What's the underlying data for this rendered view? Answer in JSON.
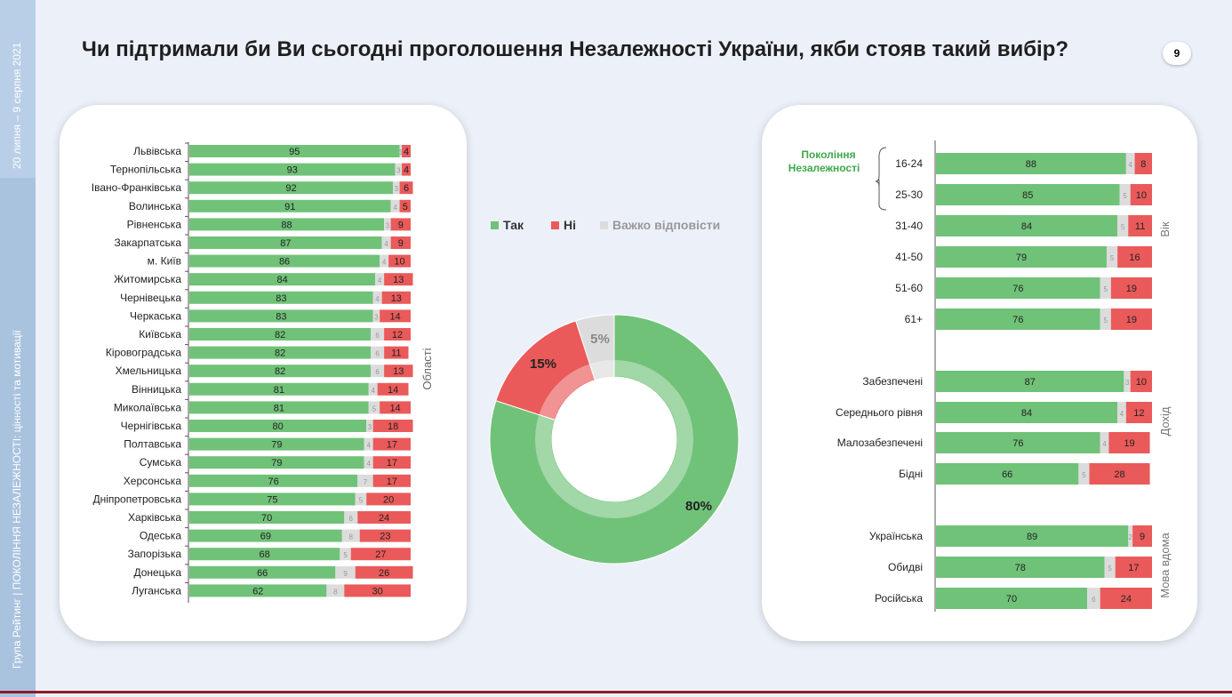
{
  "title": "Чи підтримали би Ви сьогодні проголошення Незалежності України, якби стояв такий вибір?",
  "page_number": "9",
  "side": {
    "dates": "20 липня – 9 серпня 2021",
    "org": "Група Рейтинг | ПОКОЛІННЯ НЕЗАЛЕЖНОСТІ: цінності та мотивації"
  },
  "colors": {
    "tak": "#70c278",
    "ni": "#ea5a5a",
    "hard": "#dcdcdc",
    "ni_light": "#f4a0a0"
  },
  "chart_data": [
    {
      "type": "bar",
      "orientation": "horizontal-stacked",
      "axis_label": "Області",
      "series_names": [
        "Так",
        "Важко відповісти",
        "Ні"
      ],
      "categories": [
        "Львівська",
        "Тернопільська",
        "Івано-Франківська",
        "Волинська",
        "Рівненська",
        "Закарпатська",
        "м. Київ",
        "Житомирська",
        "Чернівецька",
        "Черкаська",
        "Київська",
        "Кіровоградська",
        "Хмельницька",
        "Вінницька",
        "Миколаївська",
        "Чернігівська",
        "Полтавська",
        "Сумська",
        "Херсонська",
        "Дніпропетровська",
        "Харківська",
        "Одеська",
        "Запорізька",
        "Донецька",
        "Луганська"
      ],
      "tak": [
        95,
        93,
        92,
        91,
        88,
        87,
        86,
        84,
        83,
        83,
        82,
        82,
        82,
        81,
        81,
        80,
        79,
        79,
        76,
        75,
        70,
        69,
        68,
        66,
        62
      ],
      "hard": [
        1,
        3,
        3,
        4,
        3,
        4,
        4,
        4,
        4,
        3,
        6,
        6,
        6,
        4,
        5,
        3,
        4,
        4,
        7,
        5,
        6,
        8,
        5,
        9,
        8
      ],
      "ni": [
        4,
        4,
        6,
        5,
        9,
        9,
        10,
        13,
        13,
        14,
        12,
        11,
        13,
        14,
        14,
        18,
        17,
        17,
        17,
        20,
        24,
        23,
        27,
        26,
        30
      ]
    },
    {
      "type": "pie",
      "variant": "donut",
      "legend": [
        "Так",
        "Ні",
        "Важко відповісти"
      ],
      "values": [
        80,
        15,
        5
      ],
      "labels": [
        "80%",
        "15%",
        "5%"
      ]
    },
    {
      "type": "bar",
      "orientation": "horizontal-stacked",
      "series_names": [
        "Так",
        "Важко відповісти",
        "Ні"
      ],
      "bracket_label": [
        "Покоління",
        "Незалежності"
      ],
      "groups": [
        {
          "label": "Вік",
          "categories": [
            "16-24",
            "25-30",
            "31-40",
            "41-50",
            "51-60",
            "61+"
          ],
          "tak": [
            88,
            85,
            84,
            79,
            76,
            76
          ],
          "hard": [
            4,
            5,
            5,
            5,
            5,
            5
          ],
          "ni": [
            8,
            10,
            11,
            16,
            19,
            19
          ]
        },
        {
          "label": "Дохід",
          "categories": [
            "Забезпечені",
            "Середнього рівня",
            "Малозабезпечені",
            "Бідні"
          ],
          "tak": [
            87,
            84,
            76,
            66
          ],
          "hard": [
            3,
            4,
            4,
            5
          ],
          "ni": [
            10,
            12,
            19,
            28
          ]
        },
        {
          "label": "Мова вдома",
          "categories": [
            "Українська",
            "Обидві",
            "Російська"
          ],
          "tak": [
            89,
            78,
            70
          ],
          "hard": [
            2,
            5,
            6
          ],
          "ni": [
            9,
            17,
            24
          ]
        }
      ]
    }
  ]
}
